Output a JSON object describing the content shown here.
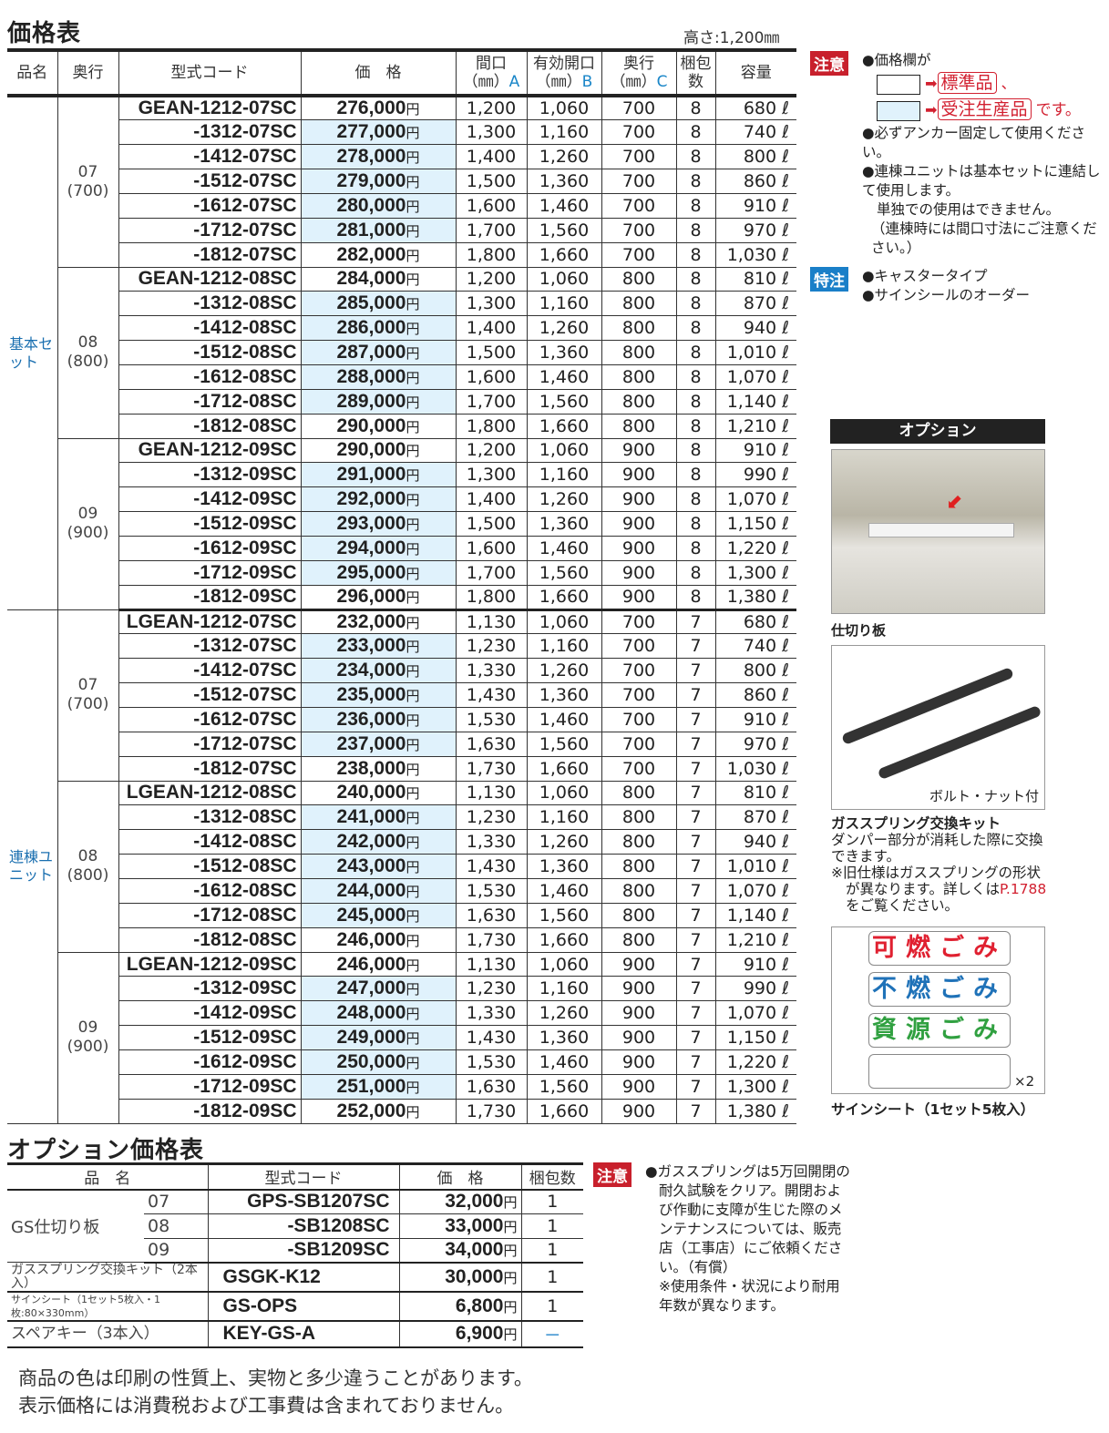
{
  "title": "価格表",
  "height_note": "高さ:1,200㎜",
  "headers": {
    "name": "品名",
    "depth": "奥行",
    "code": "型式コード",
    "price": "価　格",
    "a1": "間口",
    "a2": "（㎜）",
    "a3": "A",
    "b1": "有効開口",
    "b2": "（㎜）",
    "b3": "B",
    "c1": "奥行",
    "c2": "（㎜）",
    "c3": "C",
    "pack": "梱包数",
    "cap": "容量"
  },
  "yen": "円",
  "liter": "ℓ",
  "categories": [
    {
      "label": "基本セット",
      "groups": [
        {
          "label": "07\n(700)",
          "rows": [
            [
              "GEAN-1212-07SC",
              "276,000",
              false,
              "1,200",
              "1,060",
              "700",
              "8",
              "680"
            ],
            [
              "-1312-07SC",
              "277,000",
              true,
              "1,300",
              "1,160",
              "700",
              "8",
              "740"
            ],
            [
              "-1412-07SC",
              "278,000",
              true,
              "1,400",
              "1,260",
              "700",
              "8",
              "800"
            ],
            [
              "-1512-07SC",
              "279,000",
              true,
              "1,500",
              "1,360",
              "700",
              "8",
              "860"
            ],
            [
              "-1612-07SC",
              "280,000",
              true,
              "1,600",
              "1,460",
              "700",
              "8",
              "910"
            ],
            [
              "-1712-07SC",
              "281,000",
              true,
              "1,700",
              "1,560",
              "700",
              "8",
              "970"
            ],
            [
              "-1812-07SC",
              "282,000",
              false,
              "1,800",
              "1,660",
              "700",
              "8",
              "1,030"
            ]
          ]
        },
        {
          "label": "08\n(800)",
          "rows": [
            [
              "GEAN-1212-08SC",
              "284,000",
              false,
              "1,200",
              "1,060",
              "800",
              "8",
              "810"
            ],
            [
              "-1312-08SC",
              "285,000",
              true,
              "1,300",
              "1,160",
              "800",
              "8",
              "870"
            ],
            [
              "-1412-08SC",
              "286,000",
              true,
              "1,400",
              "1,260",
              "800",
              "8",
              "940"
            ],
            [
              "-1512-08SC",
              "287,000",
              true,
              "1,500",
              "1,360",
              "800",
              "8",
              "1,010"
            ],
            [
              "-1612-08SC",
              "288,000",
              true,
              "1,600",
              "1,460",
              "800",
              "8",
              "1,070"
            ],
            [
              "-1712-08SC",
              "289,000",
              true,
              "1,700",
              "1,560",
              "800",
              "8",
              "1,140"
            ],
            [
              "-1812-08SC",
              "290,000",
              false,
              "1,800",
              "1,660",
              "800",
              "8",
              "1,210"
            ]
          ]
        },
        {
          "label": "09\n(900)",
          "rows": [
            [
              "GEAN-1212-09SC",
              "290,000",
              false,
              "1,200",
              "1,060",
              "900",
              "8",
              "910"
            ],
            [
              "-1312-09SC",
              "291,000",
              true,
              "1,300",
              "1,160",
              "900",
              "8",
              "990"
            ],
            [
              "-1412-09SC",
              "292,000",
              true,
              "1,400",
              "1,260",
              "900",
              "8",
              "1,070"
            ],
            [
              "-1512-09SC",
              "293,000",
              true,
              "1,500",
              "1,360",
              "900",
              "8",
              "1,150"
            ],
            [
              "-1612-09SC",
              "294,000",
              true,
              "1,600",
              "1,460",
              "900",
              "8",
              "1,220"
            ],
            [
              "-1712-09SC",
              "295,000",
              true,
              "1,700",
              "1,560",
              "900",
              "8",
              "1,300"
            ],
            [
              "-1812-09SC",
              "296,000",
              false,
              "1,800",
              "1,660",
              "900",
              "8",
              "1,380"
            ]
          ]
        }
      ]
    },
    {
      "label": "連棟ユニット",
      "groups": [
        {
          "label": "07\n(700)",
          "rows": [
            [
              "LGEAN-1212-07SC",
              "232,000",
              false,
              "1,130",
              "1,060",
              "700",
              "7",
              "680"
            ],
            [
              "-1312-07SC",
              "233,000",
              true,
              "1,230",
              "1,160",
              "700",
              "7",
              "740"
            ],
            [
              "-1412-07SC",
              "234,000",
              true,
              "1,330",
              "1,260",
              "700",
              "7",
              "800"
            ],
            [
              "-1512-07SC",
              "235,000",
              true,
              "1,430",
              "1,360",
              "700",
              "7",
              "860"
            ],
            [
              "-1612-07SC",
              "236,000",
              true,
              "1,530",
              "1,460",
              "700",
              "7",
              "910"
            ],
            [
              "-1712-07SC",
              "237,000",
              true,
              "1,630",
              "1,560",
              "700",
              "7",
              "970"
            ],
            [
              "-1812-07SC",
              "238,000",
              false,
              "1,730",
              "1,660",
              "700",
              "7",
              "1,030"
            ]
          ]
        },
        {
          "label": "08\n(800)",
          "rows": [
            [
              "LGEAN-1212-08SC",
              "240,000",
              false,
              "1,130",
              "1,060",
              "800",
              "7",
              "810"
            ],
            [
              "-1312-08SC",
              "241,000",
              true,
              "1,230",
              "1,160",
              "800",
              "7",
              "870"
            ],
            [
              "-1412-08SC",
              "242,000",
              true,
              "1,330",
              "1,260",
              "800",
              "7",
              "940"
            ],
            [
              "-1512-08SC",
              "243,000",
              true,
              "1,430",
              "1,360",
              "800",
              "7",
              "1,010"
            ],
            [
              "-1612-08SC",
              "244,000",
              true,
              "1,530",
              "1,460",
              "800",
              "7",
              "1,070"
            ],
            [
              "-1712-08SC",
              "245,000",
              true,
              "1,630",
              "1,560",
              "800",
              "7",
              "1,140"
            ],
            [
              "-1812-08SC",
              "246,000",
              false,
              "1,730",
              "1,660",
              "800",
              "7",
              "1,210"
            ]
          ]
        },
        {
          "label": "09\n(900)",
          "rows": [
            [
              "LGEAN-1212-09SC",
              "246,000",
              false,
              "1,130",
              "1,060",
              "900",
              "7",
              "910"
            ],
            [
              "-1312-09SC",
              "247,000",
              true,
              "1,230",
              "1,160",
              "900",
              "7",
              "990"
            ],
            [
              "-1412-09SC",
              "248,000",
              true,
              "1,330",
              "1,260",
              "900",
              "7",
              "1,070"
            ],
            [
              "-1512-09SC",
              "249,000",
              true,
              "1,430",
              "1,360",
              "900",
              "7",
              "1,150"
            ],
            [
              "-1612-09SC",
              "250,000",
              true,
              "1,530",
              "1,460",
              "900",
              "7",
              "1,220"
            ],
            [
              "-1712-09SC",
              "251,000",
              true,
              "1,630",
              "1,560",
              "900",
              "7",
              "1,300"
            ],
            [
              "-1812-09SC",
              "252,000",
              false,
              "1,730",
              "1,660",
              "900",
              "7",
              "1,380"
            ]
          ]
        }
      ]
    }
  ],
  "caution": {
    "badge": "注意",
    "price_col": "●価格欄が",
    "standard": "標準品",
    "comma": "、",
    "made_to_order": "受注生産品",
    "desu": "です。",
    "n1": "●必ずアンカー固定して使用ください。",
    "n2": "●連棟ユニットは基本セットに連結して使用します。",
    "n3": "単独での使用はできません。",
    "n4": "（連棟時には間口寸法にご注意ください。）"
  },
  "special": {
    "badge": "特注",
    "i1": "●キャスタータイプ",
    "i2": "●サインシールのオーダー"
  },
  "colors": {
    "highlight": "#e0f2fc",
    "caution": "#d22030",
    "special": "#1a7fc8"
  },
  "option": {
    "header": "オプション",
    "img1_caption": "仕切り板",
    "img2_label": "ボルト・ナット付",
    "kit_title": "ガススプリング交換キット",
    "kit_desc": "ダンパー部分が消耗した際に交換できます。",
    "kit_note1": "※旧仕様はガススプリングの形状が異なります。詳しくは",
    "kit_page": "P.1788",
    "kit_note2": "をご覧ください。",
    "signs": [
      "可燃ごみ",
      "不燃ごみ",
      "資源ごみ"
    ],
    "sign_blank_count": "×2",
    "sign_caption": "サインシート（1セット5枚入）"
  },
  "option_table": {
    "title": "オプション価格表",
    "headers": [
      "品　名",
      "型式コード",
      "価　格",
      "梱包数"
    ],
    "gs_label": "GS仕切り板",
    "rows": [
      [
        "07",
        "GPS-SB1207SC",
        "32,000",
        "1"
      ],
      [
        "08",
        "-SB1208SC",
        "33,000",
        "1"
      ],
      [
        "09",
        "-SB1209SC",
        "34,000",
        "1"
      ]
    ],
    "rows2": [
      [
        "ガススプリング交換キット（2本入）",
        "GSGK-K12",
        "30,000",
        "1"
      ],
      [
        "サインシート（1セット5枚入・1枚:80×330mm）",
        "GS-OPS",
        "6,800",
        "1"
      ],
      [
        "スペアキー（3本入）",
        "KEY-GS-A",
        "6,900",
        "－"
      ]
    ]
  },
  "option_caution": {
    "badge": "注意",
    "text": "●ガススプリングは5万回開閉の耐久試験をクリア。開閉および作動に支障が生じた際のメンテナンスについては、販売店（工事店）にご依頼ください。（有償）",
    "note": "※使用条件・状況により耐用年数が異なります。"
  },
  "footer": [
    "商品の色は印刷の性質上、実物と多少違うことがあります。",
    "表示価格には消費税および工事費は含まれておりません。"
  ]
}
